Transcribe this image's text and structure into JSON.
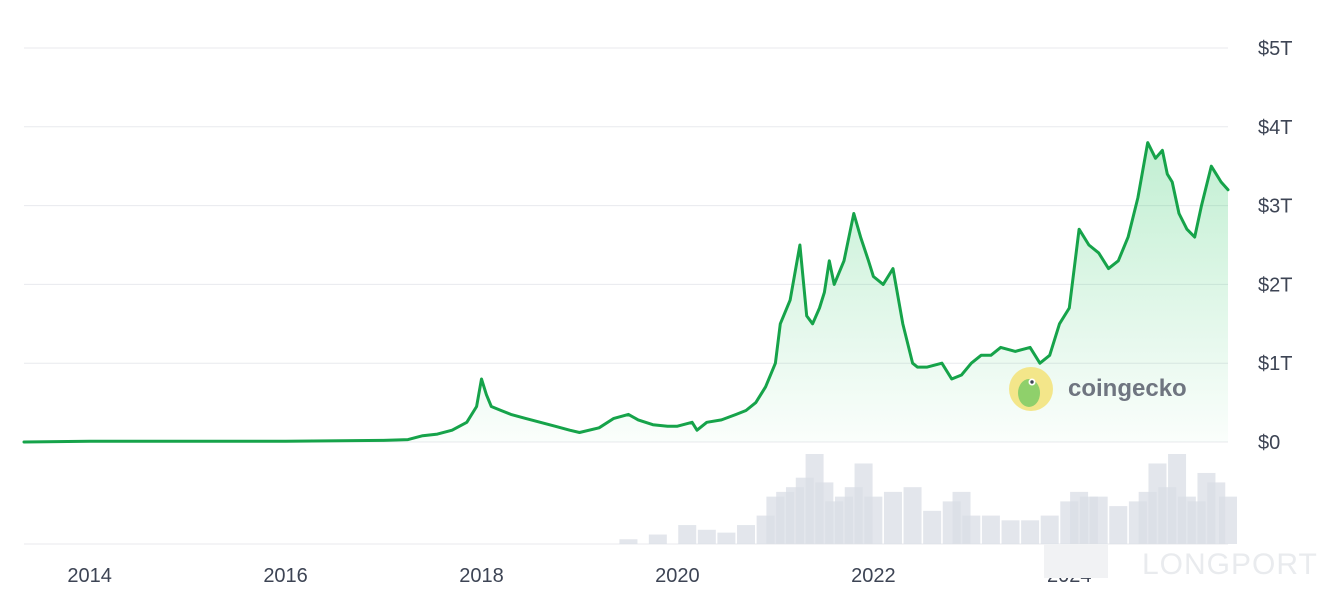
{
  "chart_data": {
    "type": "area",
    "y_tick_labels": [
      "$0",
      "$1T",
      "$2T",
      "$3T",
      "$4T",
      "$5T"
    ],
    "y_tick_values": [
      0,
      1,
      2,
      3,
      4,
      5
    ],
    "x_tick_labels": [
      "2014",
      "2016",
      "2018",
      "2020",
      "2022",
      "2024"
    ],
    "x_tick_values": [
      2014.0,
      2016.0,
      2018.0,
      2020.0,
      2022.0,
      2024.0
    ],
    "ylim": [
      0,
      5
    ],
    "xlim": [
      2013.33,
      2025.62
    ],
    "unit": "trillion USD",
    "grid": true,
    "line_color": "#16a34a",
    "fill_color": "#22c55e",
    "volume_color": "#d9dee6",
    "series": [
      {
        "x": [
          2013.33,
          2014.0,
          2015.0,
          2016.0,
          2017.0,
          2017.25,
          2017.4,
          2017.55,
          2017.7,
          2017.85,
          2017.95,
          2018.0,
          2018.05,
          2018.1,
          2018.2,
          2018.3,
          2018.45,
          2018.6,
          2018.75,
          2018.9,
          2019.0,
          2019.2,
          2019.35,
          2019.5,
          2019.6,
          2019.75,
          2019.9,
          2020.0,
          2020.15,
          2020.2,
          2020.3,
          2020.45,
          2020.6,
          2020.7,
          2020.8,
          2020.9,
          2021.0,
          2021.05,
          2021.15,
          2021.25,
          2021.32,
          2021.38,
          2021.45,
          2021.5,
          2021.55,
          2021.6,
          2021.7,
          2021.8,
          2021.87,
          2021.95,
          2022.0,
          2022.1,
          2022.2,
          2022.3,
          2022.4,
          2022.45,
          2022.55,
          2022.7,
          2022.8,
          2022.9,
          2023.0,
          2023.1,
          2023.2,
          2023.3,
          2023.45,
          2023.6,
          2023.7,
          2023.8,
          2023.9,
          2024.0,
          2024.1,
          2024.2,
          2024.3,
          2024.4,
          2024.5,
          2024.6,
          2024.7,
          2024.8,
          2024.88,
          2024.95,
          2025.0,
          2025.05,
          2025.12,
          2025.2,
          2025.28,
          2025.35,
          2025.45,
          2025.5,
          2025.55,
          2025.62
        ],
        "y": [
          0.0,
          0.01,
          0.01,
          0.01,
          0.02,
          0.03,
          0.08,
          0.1,
          0.15,
          0.25,
          0.45,
          0.8,
          0.6,
          0.45,
          0.4,
          0.35,
          0.3,
          0.25,
          0.2,
          0.15,
          0.12,
          0.18,
          0.3,
          0.35,
          0.28,
          0.22,
          0.2,
          0.2,
          0.25,
          0.15,
          0.25,
          0.28,
          0.35,
          0.4,
          0.5,
          0.7,
          1.0,
          1.5,
          1.8,
          2.5,
          1.6,
          1.5,
          1.7,
          1.9,
          2.3,
          2.0,
          2.3,
          2.9,
          2.6,
          2.3,
          2.1,
          2.0,
          2.2,
          1.5,
          1.0,
          0.95,
          0.95,
          1.0,
          0.8,
          0.85,
          1.0,
          1.1,
          1.1,
          1.2,
          1.15,
          1.2,
          1.0,
          1.1,
          1.5,
          1.7,
          2.7,
          2.5,
          2.4,
          2.2,
          2.3,
          2.6,
          3.1,
          3.8,
          3.6,
          3.7,
          3.4,
          3.3,
          2.9,
          2.7,
          2.6,
          3.0,
          3.5,
          3.4,
          3.3,
          3.2
        ]
      }
    ],
    "volume": {
      "x": [
        2019.5,
        2019.8,
        2020.1,
        2020.3,
        2020.5,
        2020.7,
        2020.9,
        2021.0,
        2021.1,
        2021.2,
        2021.3,
        2021.4,
        2021.5,
        2021.6,
        2021.7,
        2021.8,
        2021.9,
        2022.0,
        2022.2,
        2022.4,
        2022.6,
        2022.8,
        2022.9,
        2023.0,
        2023.2,
        2023.4,
        2023.6,
        2023.8,
        2024.0,
        2024.1,
        2024.2,
        2024.3,
        2024.5,
        2024.7,
        2024.8,
        2024.9,
        2025.0,
        2025.1,
        2025.2,
        2025.3,
        2025.4,
        2025.5,
        2025.62
      ],
      "y": [
        0.05,
        0.1,
        0.2,
        0.15,
        0.12,
        0.2,
        0.3,
        0.5,
        0.55,
        0.6,
        0.7,
        0.95,
        0.65,
        0.45,
        0.5,
        0.6,
        0.85,
        0.5,
        0.55,
        0.6,
        0.35,
        0.45,
        0.55,
        0.3,
        0.3,
        0.25,
        0.25,
        0.3,
        0.45,
        0.55,
        0.5,
        0.5,
        0.4,
        0.45,
        0.55,
        0.85,
        0.6,
        0.95,
        0.5,
        0.45,
        0.75,
        0.65,
        0.5
      ]
    }
  },
  "watermark": {
    "brand_text": "coingecko",
    "corner_text": "LONGPORT"
  }
}
